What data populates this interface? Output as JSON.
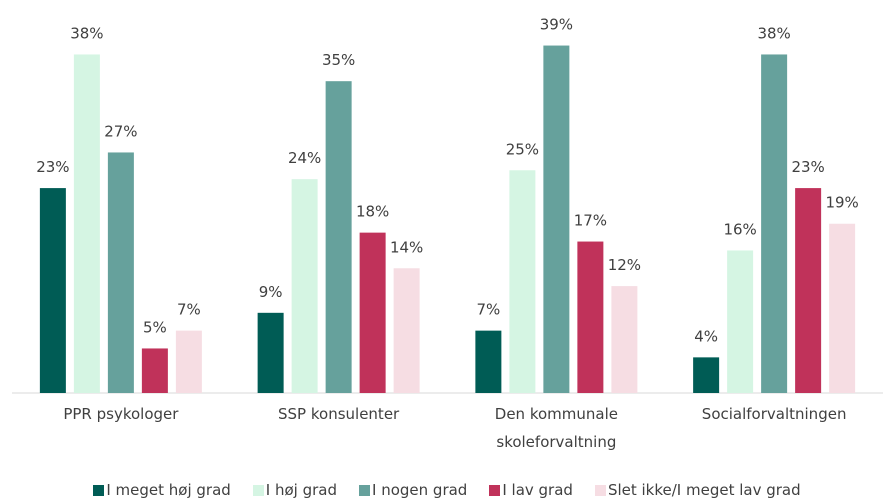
{
  "chart_data": {
    "type": "bar",
    "categories": [
      "PPR psykologer",
      "SSP konsulenter",
      "Den kommunale skoleforvaltning",
      "Socialforvaltningen"
    ],
    "series": [
      {
        "name": "I meget høj grad",
        "color": "#005c55",
        "values": [
          23,
          9,
          7,
          4
        ],
        "value_labels": [
          "23%",
          "9%",
          "7%",
          "4%"
        ]
      },
      {
        "name": "I høj grad",
        "color": "#d5f5e3",
        "values": [
          38,
          24,
          25,
          16
        ],
        "value_labels": [
          "38%",
          "24%",
          "25%",
          "16%"
        ]
      },
      {
        "name": "I nogen grad",
        "color": "#66a19c",
        "values": [
          27,
          35,
          39,
          38
        ],
        "value_labels": [
          "27%",
          "35%",
          "39%",
          "38%"
        ]
      },
      {
        "name": "I lav grad",
        "color": "#c0325a",
        "values": [
          5,
          18,
          17,
          23
        ],
        "value_labels": [
          "5%",
          "18%",
          "17%",
          "23%"
        ]
      },
      {
        "name": "Slet ikke/I meget lav grad",
        "color": "#f6dde3",
        "values": [
          7,
          14,
          12,
          19
        ],
        "value_labels": [
          "7%",
          "14%",
          "12%",
          "19%"
        ]
      }
    ],
    "ylim": [
      0,
      44
    ],
    "legend": "bottom"
  }
}
